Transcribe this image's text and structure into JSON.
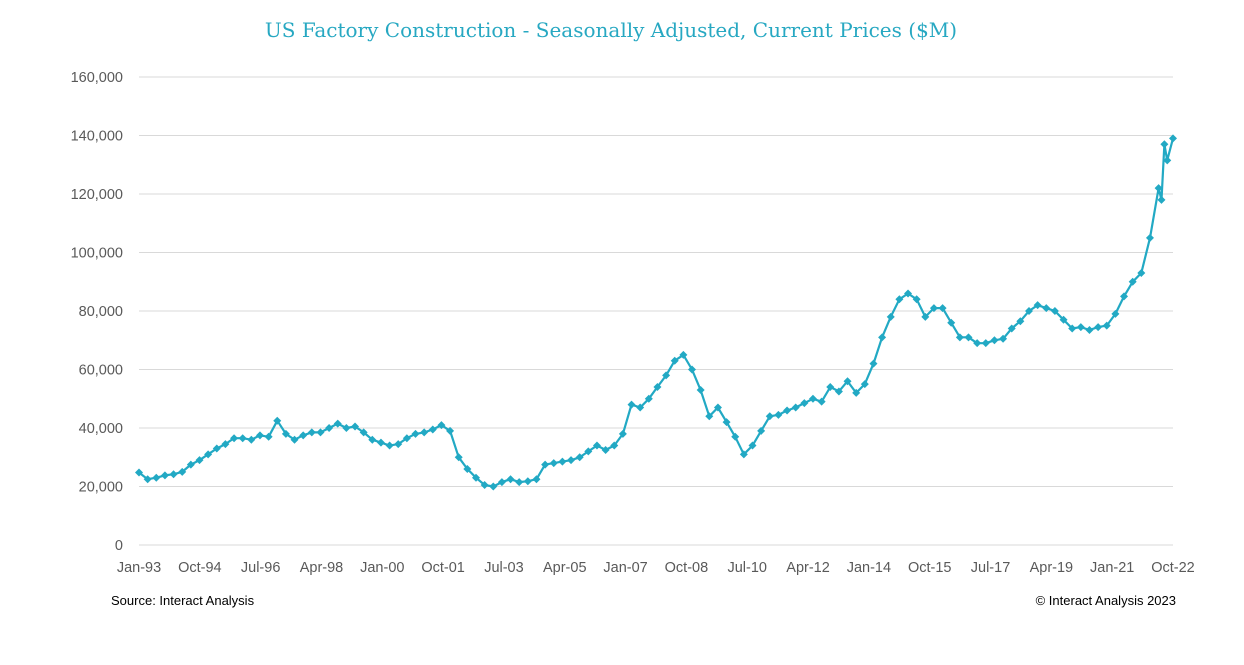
{
  "chart_data": {
    "type": "line",
    "title": "US Factory Construction - Seasonally Adjusted, Current Prices ($M)",
    "xlabel": "",
    "ylabel": "",
    "x_start": "1993-01",
    "x_end": "2022-12",
    "ylim": [
      0,
      160000
    ],
    "yticks": [
      0,
      20000,
      40000,
      60000,
      80000,
      100000,
      120000,
      140000,
      160000
    ],
    "ytick_labels": [
      "0",
      "20,000",
      "40,000",
      "60,000",
      "80,000",
      "100,000",
      "120,000",
      "140,000",
      "160,000"
    ],
    "xtick_labels": [
      "Jan-93",
      "Oct-94",
      "Jul-96",
      "Apr-98",
      "Jan-00",
      "Oct-01",
      "Jul-03",
      "Apr-05",
      "Jan-07",
      "Oct-08",
      "Jul-10",
      "Apr-12",
      "Jan-14",
      "Oct-15",
      "Jul-17",
      "Apr-19",
      "Jan-21",
      "Oct-22"
    ],
    "grid": true,
    "legend": "none",
    "marker": "diamond",
    "color": "#22a9c4",
    "series": [
      {
        "points": [
          [
            "1993-01",
            24800
          ],
          [
            "1993-04",
            22500
          ],
          [
            "1993-07",
            23000
          ],
          [
            "1993-10",
            23800
          ],
          [
            "1994-01",
            24200
          ],
          [
            "1994-04",
            25000
          ],
          [
            "1994-07",
            27500
          ],
          [
            "1994-10",
            29000
          ],
          [
            "1995-01",
            31000
          ],
          [
            "1995-04",
            33000
          ],
          [
            "1995-07",
            34500
          ],
          [
            "1995-10",
            36500
          ],
          [
            "1996-01",
            36500
          ],
          [
            "1996-04",
            36000
          ],
          [
            "1996-07",
            37500
          ],
          [
            "1996-10",
            37000
          ],
          [
            "1997-01",
            42500
          ],
          [
            "1997-04",
            38000
          ],
          [
            "1997-07",
            36000
          ],
          [
            "1997-10",
            37500
          ],
          [
            "1998-01",
            38500
          ],
          [
            "1998-04",
            38500
          ],
          [
            "1998-07",
            40000
          ],
          [
            "1998-10",
            41500
          ],
          [
            "1999-01",
            40000
          ],
          [
            "1999-04",
            40500
          ],
          [
            "1999-07",
            38500
          ],
          [
            "1999-10",
            36000
          ],
          [
            "2000-01",
            35000
          ],
          [
            "2000-04",
            34000
          ],
          [
            "2000-07",
            34500
          ],
          [
            "2000-10",
            36500
          ],
          [
            "2001-01",
            38000
          ],
          [
            "2001-04",
            38500
          ],
          [
            "2001-07",
            39500
          ],
          [
            "2001-10",
            41000
          ],
          [
            "2002-01",
            39000
          ],
          [
            "2002-04",
            30000
          ],
          [
            "2002-07",
            26000
          ],
          [
            "2002-10",
            23000
          ],
          [
            "2003-01",
            20500
          ],
          [
            "2003-04",
            20000
          ],
          [
            "2003-07",
            21500
          ],
          [
            "2003-10",
            22500
          ],
          [
            "2004-01",
            21500
          ],
          [
            "2004-04",
            21800
          ],
          [
            "2004-07",
            22500
          ],
          [
            "2004-10",
            27500
          ],
          [
            "2005-01",
            28000
          ],
          [
            "2005-04",
            28500
          ],
          [
            "2005-07",
            29000
          ],
          [
            "2005-10",
            30000
          ],
          [
            "2006-01",
            32000
          ],
          [
            "2006-04",
            34000
          ],
          [
            "2006-07",
            32500
          ],
          [
            "2006-10",
            34000
          ],
          [
            "2007-01",
            38000
          ],
          [
            "2007-04",
            48000
          ],
          [
            "2007-07",
            47000
          ],
          [
            "2007-10",
            50000
          ],
          [
            "2008-01",
            54000
          ],
          [
            "2008-04",
            58000
          ],
          [
            "2008-07",
            63000
          ],
          [
            "2008-10",
            65000
          ],
          [
            "2009-01",
            60000
          ],
          [
            "2009-04",
            53000
          ],
          [
            "2009-07",
            44000
          ],
          [
            "2009-10",
            47000
          ],
          [
            "2010-01",
            42000
          ],
          [
            "2010-04",
            37000
          ],
          [
            "2010-07",
            31000
          ],
          [
            "2010-10",
            34000
          ],
          [
            "2011-01",
            39000
          ],
          [
            "2011-04",
            44000
          ],
          [
            "2011-07",
            44500
          ],
          [
            "2011-10",
            46000
          ],
          [
            "2012-01",
            47000
          ],
          [
            "2012-04",
            48500
          ],
          [
            "2012-07",
            50000
          ],
          [
            "2012-10",
            49000
          ],
          [
            "2013-01",
            54000
          ],
          [
            "2013-04",
            52500
          ],
          [
            "2013-07",
            56000
          ],
          [
            "2013-10",
            52000
          ],
          [
            "2014-01",
            55000
          ],
          [
            "2014-04",
            62000
          ],
          [
            "2014-07",
            71000
          ],
          [
            "2014-10",
            78000
          ],
          [
            "2015-01",
            84000
          ],
          [
            "2015-04",
            86000
          ],
          [
            "2015-07",
            84000
          ],
          [
            "2015-10",
            78000
          ],
          [
            "2016-01",
            81000
          ],
          [
            "2016-04",
            81000
          ],
          [
            "2016-07",
            76000
          ],
          [
            "2016-10",
            71000
          ],
          [
            "2017-01",
            71000
          ],
          [
            "2017-04",
            69000
          ],
          [
            "2017-07",
            69000
          ],
          [
            "2017-10",
            70000
          ],
          [
            "2018-01",
            70500
          ],
          [
            "2018-04",
            74000
          ],
          [
            "2018-07",
            76500
          ],
          [
            "2018-10",
            80000
          ],
          [
            "2019-01",
            82000
          ],
          [
            "2019-04",
            81000
          ],
          [
            "2019-07",
            80000
          ],
          [
            "2019-10",
            77000
          ],
          [
            "2020-01",
            74000
          ],
          [
            "2020-04",
            74500
          ],
          [
            "2020-07",
            73500
          ],
          [
            "2020-10",
            74500
          ],
          [
            "2021-01",
            75000
          ],
          [
            "2021-04",
            79000
          ],
          [
            "2021-07",
            85000
          ],
          [
            "2021-10",
            90000
          ],
          [
            "2022-01",
            93000
          ],
          [
            "2022-04",
            105000
          ],
          [
            "2022-07",
            122000
          ],
          [
            "2022-08",
            118000
          ],
          [
            "2022-09",
            137000
          ],
          [
            "2022-10",
            131500
          ],
          [
            "2022-12",
            139000
          ]
        ]
      }
    ]
  },
  "notes": {
    "source": "Source: Interact Analysis",
    "copyright": "© Interact Analysis 2023"
  }
}
